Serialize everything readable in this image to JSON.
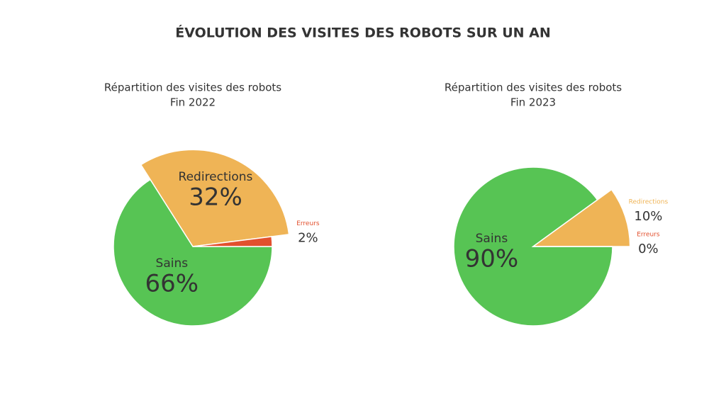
{
  "title": "ÉVOLUTION DES VISITES DES ROBOTS SUR UN AN",
  "chart_data": [
    {
      "type": "pie",
      "title": "Répartition des visites des robots",
      "subtitle": "Fin 2022",
      "categories": [
        "Sains",
        "Redirections",
        "Erreurs"
      ],
      "values": [
        66,
        32,
        2
      ],
      "value_labels": [
        "66%",
        "32%",
        "2%"
      ],
      "colors": [
        "#57c454",
        "#efb456",
        "#e2502e"
      ]
    },
    {
      "type": "pie",
      "title": "Répartition des visites des robots",
      "subtitle": "Fin 2023",
      "categories": [
        "Sains",
        "Redirections",
        "Erreurs"
      ],
      "values": [
        90,
        10,
        0
      ],
      "value_labels": [
        "90%",
        "10%",
        "0%"
      ],
      "colors": [
        "#57c454",
        "#efb456",
        "#e2502e"
      ]
    }
  ]
}
